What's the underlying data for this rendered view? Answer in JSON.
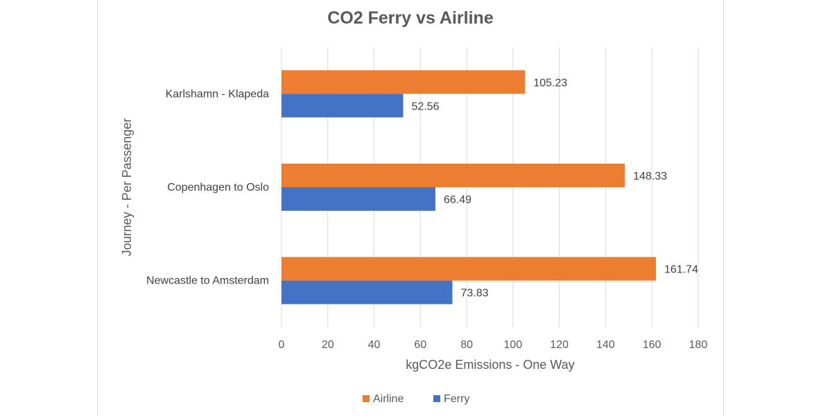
{
  "chart_data": {
    "type": "bar",
    "orientation": "horizontal",
    "title": "CO2 Ferry vs Airline",
    "xlabel": "kgCO2e Emissions - One Way",
    "ylabel": "Journey - Per Passenger",
    "categories": [
      "Karlshamn - Klapeda",
      "Copenhagen to Oslo",
      "Newcastle to Amsterdam"
    ],
    "series": [
      {
        "name": "Airline",
        "color": "#ED7D31",
        "values": [
          105.23,
          148.33,
          161.74
        ]
      },
      {
        "name": "Ferry",
        "color": "#4472C4",
        "values": [
          52.56,
          66.49,
          73.83
        ]
      }
    ],
    "xlim": [
      0,
      180
    ],
    "xticks": [
      0,
      20,
      40,
      60,
      80,
      100,
      120,
      140,
      160,
      180
    ],
    "grid": true,
    "legend": "bottom",
    "data_labels": true
  }
}
